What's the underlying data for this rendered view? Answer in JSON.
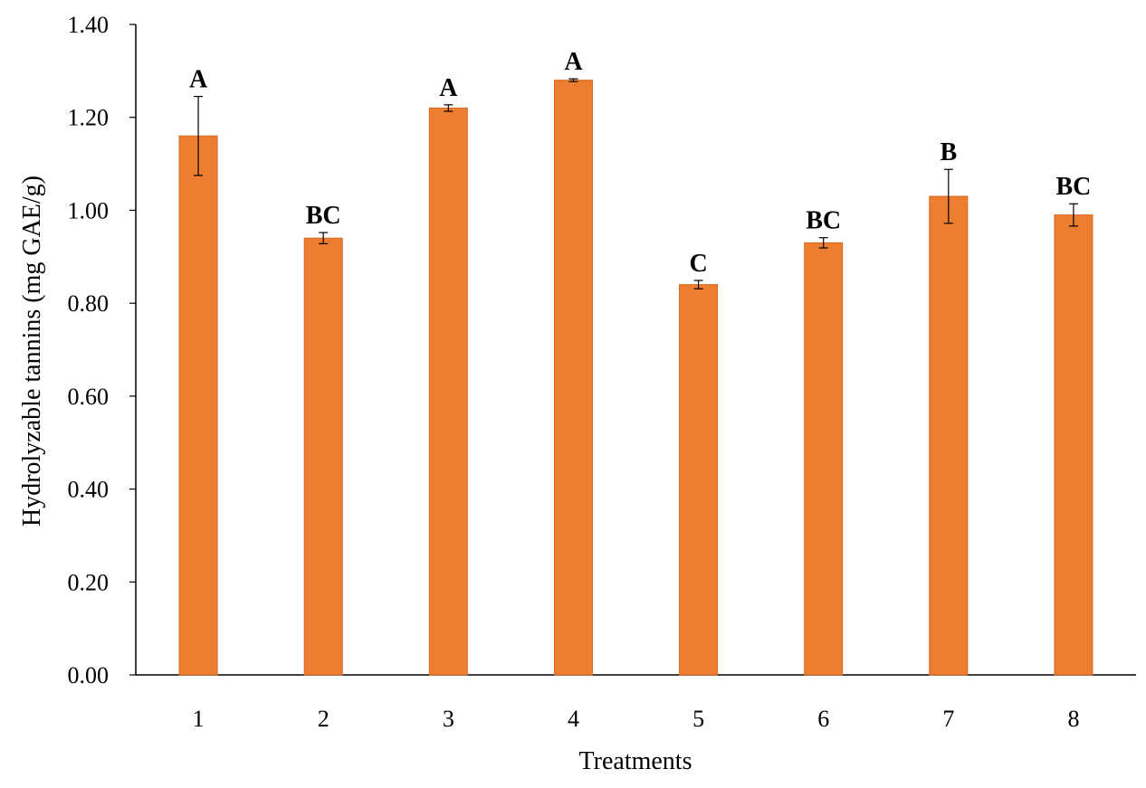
{
  "chart_data": {
    "type": "bar",
    "title": "",
    "xlabel": "Treatments",
    "ylabel": "Hydrolyzable tannins (mg GAE/g)",
    "ylim": [
      0,
      1.4
    ],
    "yticks": [
      "0.00",
      "0.20",
      "0.40",
      "0.60",
      "0.80",
      "1.00",
      "1.20",
      "1.40"
    ],
    "grid": false,
    "legend": "none",
    "categories": [
      "1",
      "2",
      "3",
      "4",
      "5",
      "6",
      "7",
      "8"
    ],
    "values": [
      1.16,
      0.94,
      1.22,
      1.28,
      0.84,
      0.93,
      1.03,
      0.99
    ],
    "errors": [
      0.085,
      0.012,
      0.007,
      0.003,
      0.009,
      0.011,
      0.058,
      0.024
    ],
    "significance": [
      "A",
      "BC",
      "A",
      "A",
      "C",
      "BC",
      "B",
      "BC"
    ],
    "bar_color": "#ED7D31",
    "bar_edge_color": "#D4691F",
    "axis_color": "#000000"
  }
}
